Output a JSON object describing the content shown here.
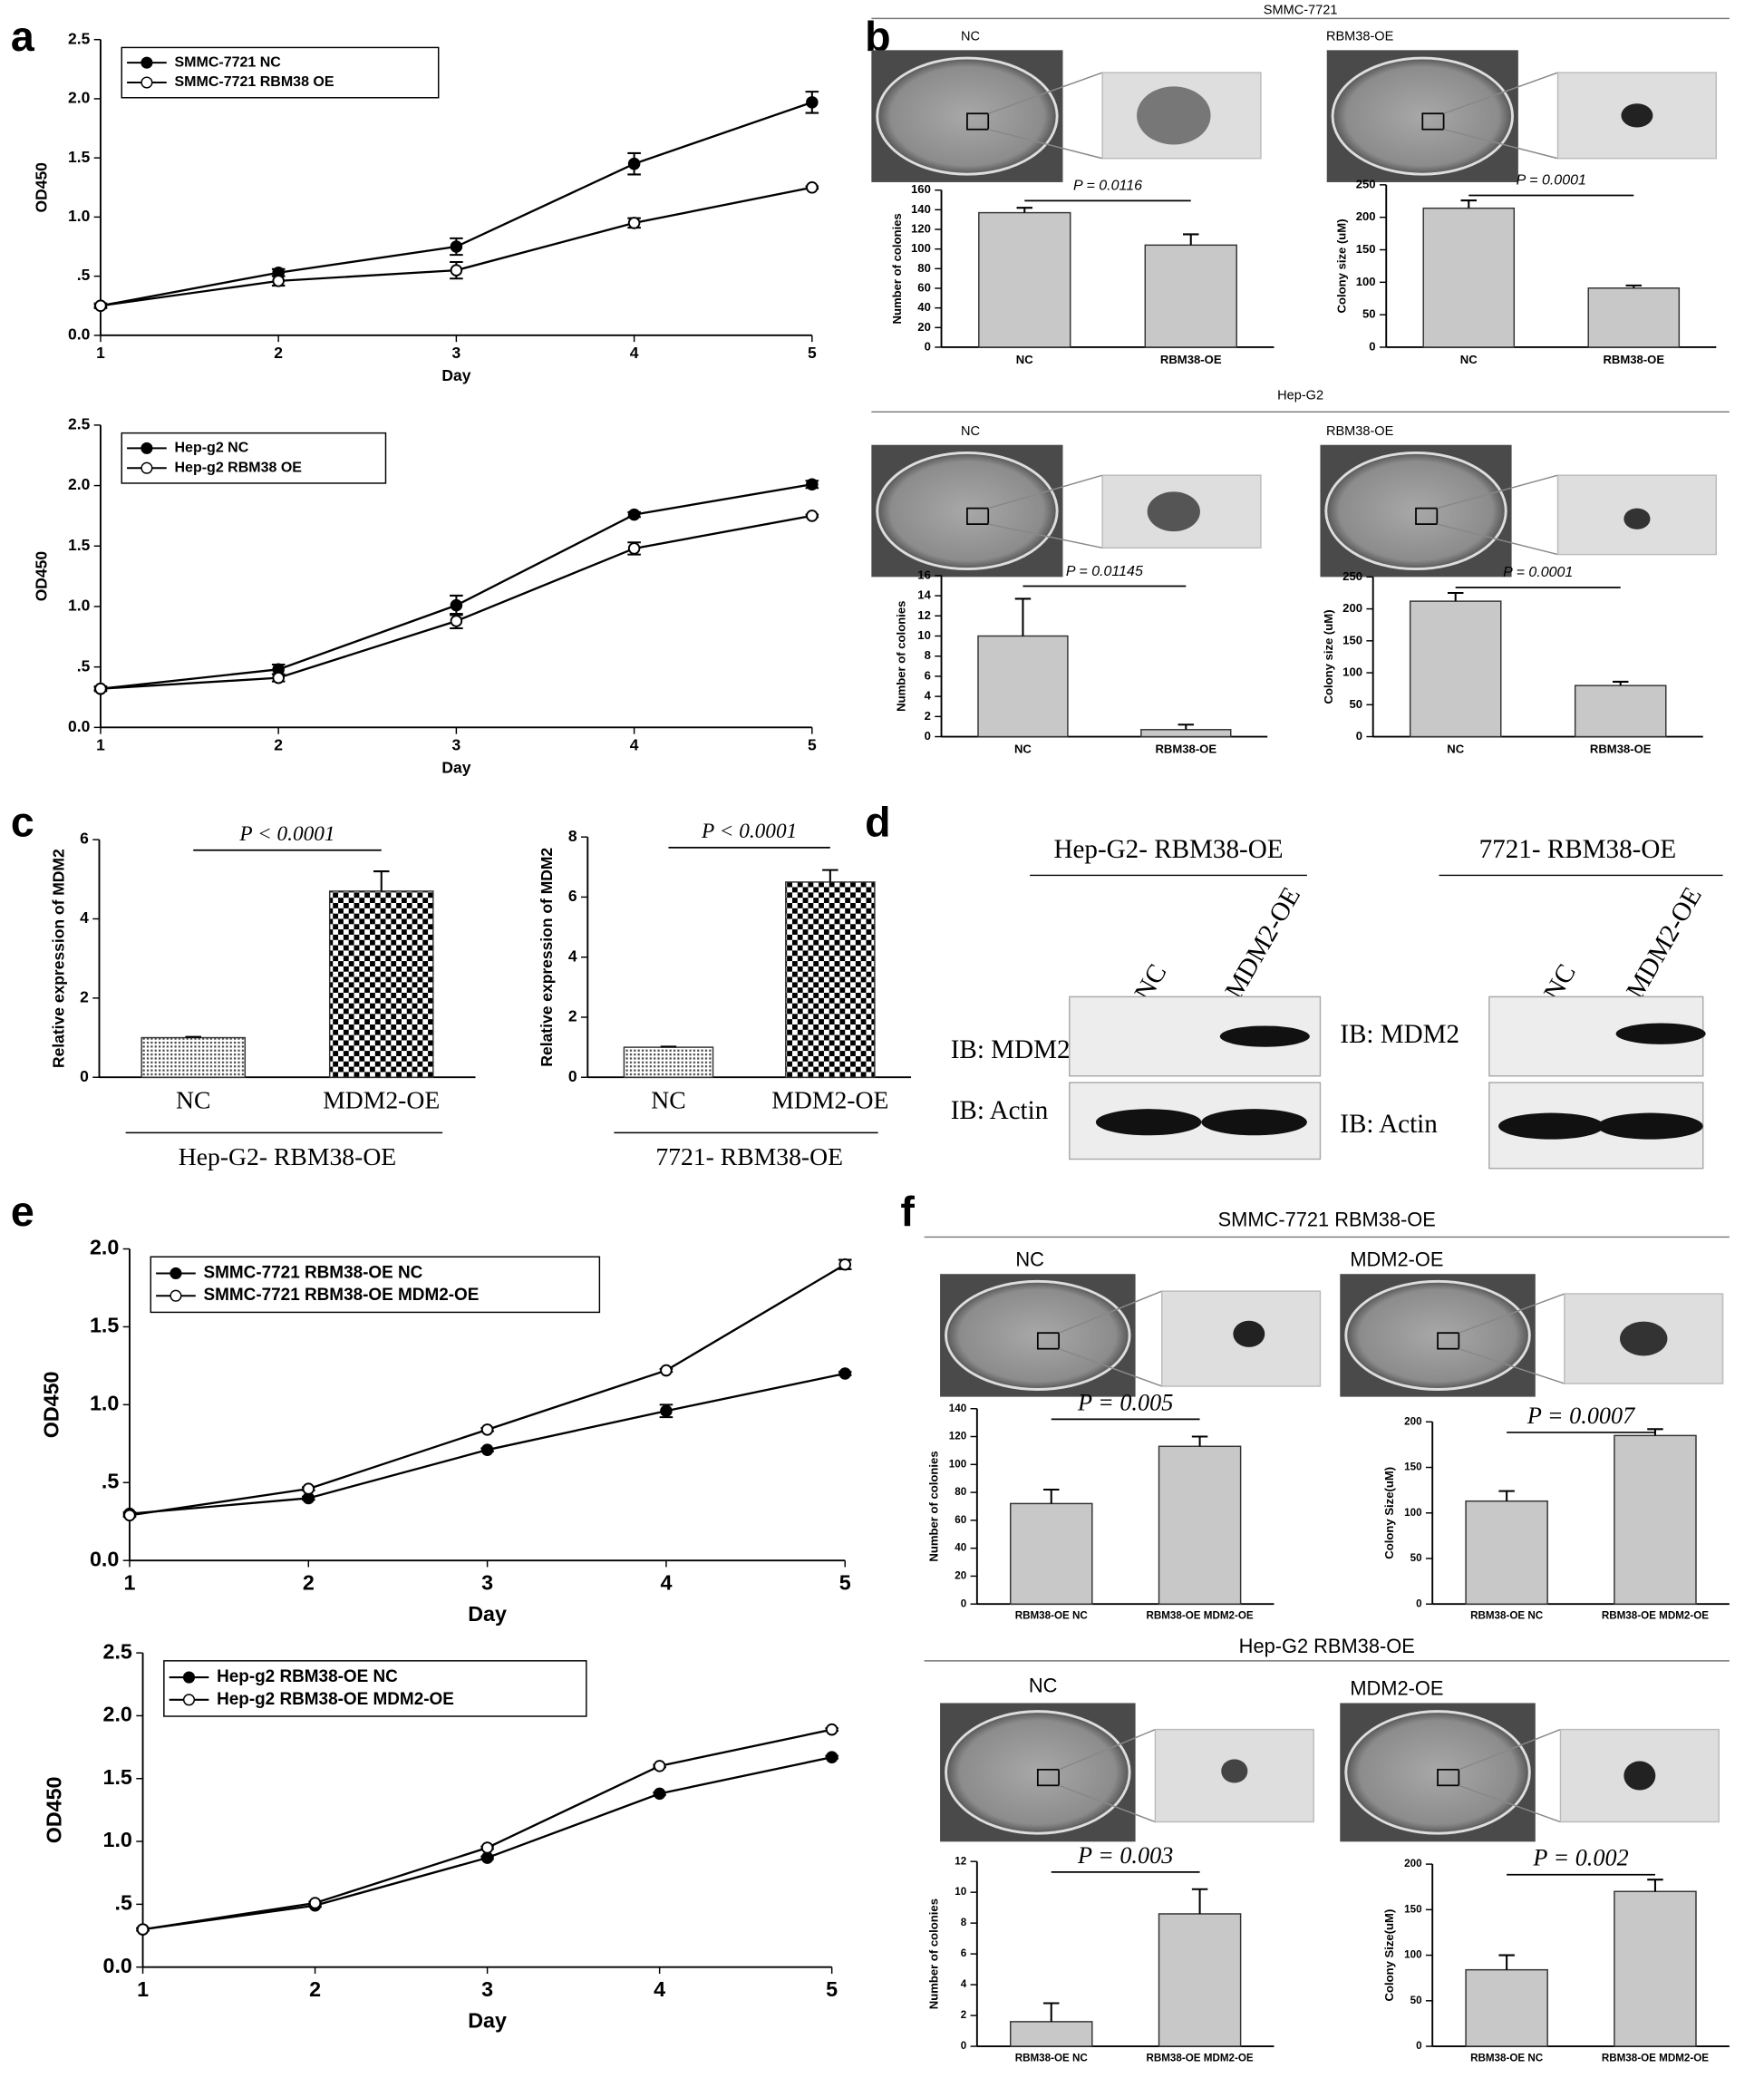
{
  "panel_labels": [
    "a",
    "b",
    "c",
    "d",
    "e",
    "f"
  ],
  "colony_headers": [
    "SMMC-7721",
    "Hep-G2",
    "SMMC-7721 RBM38-OE",
    "Hep-G2 RBM38-OE"
  ],
  "photo_labels": [
    [
      "NC",
      "RBM38-OE"
    ],
    [
      "NC",
      "RBM38-OE"
    ],
    [
      "NC",
      "MDM2-OE"
    ],
    [
      "NC",
      "MDM2-OE"
    ]
  ],
  "western_blot": [
    {
      "title": "Hep-G2- RBM38-OE",
      "lanes": [
        "NC",
        "MDM2-OE"
      ],
      "rows": [
        "IB: MDM2",
        "IB: Actin"
      ]
    },
    {
      "title": "7721- RBM38-OE",
      "lanes": [
        "NC",
        "MDM2-OE"
      ],
      "rows": [
        "IB: MDM2",
        "IB: Actin"
      ]
    }
  ],
  "chart_data": [
    {
      "type": "line",
      "x_label": "Day",
      "y_label": "OD450",
      "x": [
        1,
        2,
        3,
        4,
        5
      ],
      "xlim": [
        1,
        5
      ],
      "xticks": [
        1,
        2,
        3,
        4,
        5
      ],
      "ylim": [
        0,
        2.5
      ],
      "yticks": [
        {
          "value": 0,
          "label": "0.0"
        },
        {
          "value": 0.5,
          "label": ".5"
        },
        {
          "value": 1,
          "label": "1.0"
        },
        {
          "value": 1.5,
          "label": "1.5"
        },
        {
          "value": 2,
          "label": "2.0"
        },
        {
          "value": 2.5,
          "label": "2.5"
        }
      ],
      "legend": "upper left",
      "series": [
        {
          "name": "SMMC-7721 NC",
          "color": "#000000",
          "marker_fill": "#000000",
          "values": [
            0.25,
            0.53,
            0.75,
            1.45,
            1.97
          ],
          "errors": [
            0.02,
            0.03,
            0.07,
            0.09,
            0.09
          ]
        },
        {
          "name": "SMMC-7721 RBM38 OE",
          "color": "#000000",
          "marker_fill": "#ffffff",
          "values": [
            0.25,
            0.46,
            0.55,
            0.95,
            1.25
          ],
          "errors": [
            0.01,
            0.04,
            0.07,
            0.04,
            0.01
          ]
        }
      ]
    },
    {
      "type": "line",
      "x_label": "Day",
      "y_label": "OD450",
      "x": [
        1,
        2,
        3,
        4,
        5
      ],
      "xlim": [
        1,
        5
      ],
      "xticks": [
        1,
        2,
        3,
        4,
        5
      ],
      "ylim": [
        0,
        2.5
      ],
      "yticks": [
        {
          "value": 0,
          "label": "0.0"
        },
        {
          "value": 0.5,
          "label": ".5"
        },
        {
          "value": 1,
          "label": "1.0"
        },
        {
          "value": 1.5,
          "label": "1.5"
        },
        {
          "value": 2,
          "label": "2.0"
        },
        {
          "value": 2.5,
          "label": "2.5"
        }
      ],
      "legend": "upper left",
      "series": [
        {
          "name": "Hep-g2 NC",
          "color": "#000000",
          "marker_fill": "#000000",
          "values": [
            0.32,
            0.48,
            1.01,
            1.76,
            2.01
          ],
          "errors": [
            0.02,
            0.04,
            0.08,
            0.02,
            0.03
          ]
        },
        {
          "name": "Hep-g2 RBM38 OE",
          "color": "#000000",
          "marker_fill": "#ffffff",
          "values": [
            0.32,
            0.41,
            0.88,
            1.48,
            1.75
          ],
          "errors": [
            0.01,
            0.03,
            0.06,
            0.05,
            0.01
          ]
        }
      ]
    },
    {
      "type": "bar",
      "y_label": "Number of colonies",
      "categories": [
        "NC",
        "RBM38-OE"
      ],
      "values": [
        137,
        104
      ],
      "errors": [
        5,
        11
      ],
      "color": "#c8c8c8",
      "ylim": [
        0,
        160
      ],
      "yticks": [
        0,
        20,
        40,
        60,
        80,
        100,
        120,
        140,
        160
      ],
      "annotation": "P = 0.0116"
    },
    {
      "type": "bar",
      "y_label": "Colony size (uM)",
      "categories": [
        "NC",
        "RBM38-OE"
      ],
      "values": [
        214,
        91
      ],
      "errors": [
        12,
        4
      ],
      "color": "#c8c8c8",
      "ylim": [
        0,
        250
      ],
      "yticks": [
        0,
        50,
        100,
        150,
        200,
        250
      ],
      "annotation": "P = 0.0001"
    },
    {
      "type": "bar",
      "y_label": "Number of colonies",
      "categories": [
        "NC",
        "RBM38-OE"
      ],
      "values": [
        10,
        0.7
      ],
      "errors": [
        3.7,
        0.5
      ],
      "color": "#c8c8c8",
      "ylim": [
        0,
        16
      ],
      "yticks": [
        0,
        2,
        4,
        6,
        8,
        10,
        12,
        14,
        16
      ],
      "annotation": "P = 0.01145"
    },
    {
      "type": "bar",
      "y_label": "Colony size (uM)",
      "categories": [
        "NC",
        "RBM38-OE"
      ],
      "values": [
        212,
        80
      ],
      "errors": [
        13,
        6
      ],
      "color": "#c8c8c8",
      "ylim": [
        0,
        250
      ],
      "yticks": [
        0,
        50,
        100,
        150,
        200,
        250
      ],
      "annotation": "P = 0.0001"
    },
    {
      "type": "bar",
      "y_label": "Relative expression of MDM2",
      "categories": [
        "NC",
        "MDM2-OE"
      ],
      "values": [
        1,
        4.7
      ],
      "errors": [
        0.02,
        0.5
      ],
      "color": "#ffffff",
      "hatch": [
        "dots",
        "checker"
      ],
      "ylim": [
        0,
        6
      ],
      "yticks": [
        0,
        2,
        4,
        6
      ],
      "annotation": "P < 0.0001",
      "group_label": "Hep-G2- RBM38-OE"
    },
    {
      "type": "bar",
      "y_label": "Relative expression of MDM2",
      "categories": [
        "NC",
        "MDM2-OE"
      ],
      "values": [
        1,
        6.5
      ],
      "errors": [
        0.02,
        0.4
      ],
      "color": "#ffffff",
      "hatch": [
        "dots",
        "checker"
      ],
      "ylim": [
        0,
        8
      ],
      "yticks": [
        0,
        2,
        4,
        6,
        8
      ],
      "annotation": "P < 0.0001",
      "group_label": "7721- RBM38-OE"
    },
    {
      "type": "line",
      "x_label": "Day",
      "y_label": "OD450",
      "x": [
        1,
        2,
        3,
        4,
        5
      ],
      "xlim": [
        1,
        5
      ],
      "xticks": [
        1,
        2,
        3,
        4,
        5
      ],
      "ylim": [
        0,
        2
      ],
      "yticks": [
        {
          "value": 0,
          "label": "0.0"
        },
        {
          "value": 0.5,
          "label": ".5"
        },
        {
          "value": 1,
          "label": "1.0"
        },
        {
          "value": 1.5,
          "label": "1.5"
        },
        {
          "value": 2,
          "label": "2.0"
        }
      ],
      "legend": "upper left",
      "series": [
        {
          "name": "SMMC-7721 RBM38-OE NC",
          "color": "#000000",
          "marker_fill": "#000000",
          "values": [
            0.3,
            0.4,
            0.71,
            0.96,
            1.2
          ],
          "errors": [
            0.01,
            0.01,
            0.01,
            0.04,
            0.01
          ]
        },
        {
          "name": "SMMC-7721 RBM38-OE MDM2-OE",
          "color": "#000000",
          "marker_fill": "#ffffff",
          "values": [
            0.29,
            0.46,
            0.84,
            1.22,
            1.9
          ],
          "errors": [
            0.01,
            0.01,
            0.01,
            0.01,
            0.03
          ]
        }
      ]
    },
    {
      "type": "line",
      "x_label": "Day",
      "y_label": "OD450",
      "x": [
        1,
        2,
        3,
        4,
        5
      ],
      "xlim": [
        1,
        5
      ],
      "xticks": [
        1,
        2,
        3,
        4,
        5
      ],
      "ylim": [
        0,
        2.5
      ],
      "yticks": [
        {
          "value": 0,
          "label": "0.0"
        },
        {
          "value": 0.5,
          "label": ".5"
        },
        {
          "value": 1,
          "label": "1.0"
        },
        {
          "value": 1.5,
          "label": "1.5"
        },
        {
          "value": 2,
          "label": "2.0"
        },
        {
          "value": 2.5,
          "label": "2.5"
        }
      ],
      "legend": "upper left",
      "series": [
        {
          "name": "Hep-g2 RBM38-OE NC",
          "color": "#000000",
          "marker_fill": "#000000",
          "values": [
            0.3,
            0.49,
            0.87,
            1.38,
            1.67
          ],
          "errors": [
            0.01,
            0.01,
            0.01,
            0.01,
            0.01
          ]
        },
        {
          "name": "Hep-g2 RBM38-OE MDM2-OE",
          "color": "#000000",
          "marker_fill": "#ffffff",
          "values": [
            0.3,
            0.51,
            0.95,
            1.6,
            1.89
          ],
          "errors": [
            0.01,
            0.01,
            0.01,
            0.01,
            0.01
          ]
        }
      ]
    },
    {
      "type": "bar",
      "y_label": "Number of colonies",
      "categories": [
        "RBM38-OE NC",
        "RBM38-OE MDM2-OE"
      ],
      "values": [
        72,
        113
      ],
      "errors": [
        10,
        7
      ],
      "color": "#c8c8c8",
      "ylim": [
        0,
        140
      ],
      "yticks": [
        0,
        20,
        40,
        60,
        80,
        100,
        120,
        140
      ],
      "annotation": "P = 0.005"
    },
    {
      "type": "bar",
      "y_label": "Colony Size(uM)",
      "categories": [
        "RBM38-OE NC",
        "RBM38-OE MDM2-OE"
      ],
      "values": [
        113,
        185
      ],
      "errors": [
        11,
        7
      ],
      "color": "#c8c8c8",
      "ylim": [
        0,
        200
      ],
      "yticks": [
        0,
        50,
        100,
        150,
        200
      ],
      "annotation": "P = 0.0007"
    },
    {
      "type": "bar",
      "y_label": "Number of colonies",
      "categories": [
        "RBM38-OE NC",
        "RBM38-OE MDM2-OE"
      ],
      "values": [
        1.6,
        8.6
      ],
      "errors": [
        1.2,
        1.6
      ],
      "color": "#c8c8c8",
      "ylim": [
        0,
        12
      ],
      "yticks": [
        0,
        2,
        4,
        6,
        8,
        10,
        12
      ],
      "annotation": "P = 0.003"
    },
    {
      "type": "bar",
      "y_label": "Colony Size(uM)",
      "categories": [
        "RBM38-OE NC",
        "RBM38-OE MDM2-OE"
      ],
      "values": [
        84,
        170
      ],
      "errors": [
        16,
        13
      ],
      "color": "#c8c8c8",
      "ylim": [
        0,
        200
      ],
      "yticks": [
        0,
        50,
        100,
        150,
        200
      ],
      "annotation": "P = 0.002"
    }
  ]
}
